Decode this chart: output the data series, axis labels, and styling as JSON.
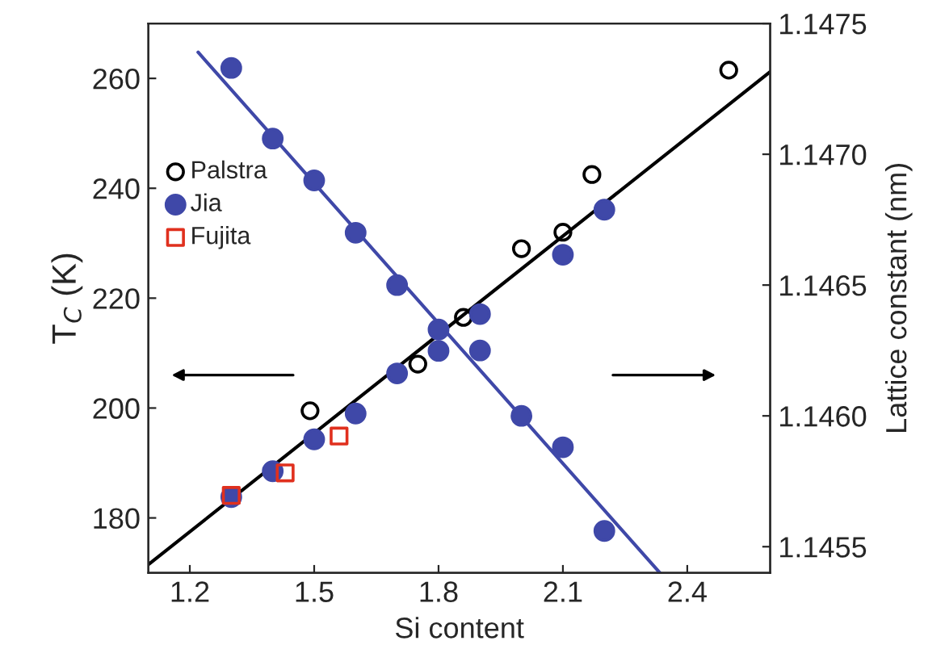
{
  "chart_data": {
    "type": "scatter",
    "xlabel": "Si content",
    "ylabel": "T$_{C}$ (K)",
    "y2label": "Lattice constant (nm)",
    "xlim": [
      1.1,
      2.6
    ],
    "xticks": [
      1.2,
      1.5,
      1.8,
      2.1,
      2.4
    ],
    "ylim": [
      170,
      270
    ],
    "yticks": [
      180,
      200,
      220,
      240,
      260
    ],
    "y2lim": [
      1.1454,
      1.1475
    ],
    "y2ticks": [
      1.1455,
      {
        "value": 1.146,
        "label": "1.1460"
      },
      1.1465,
      {
        "value": 1.147,
        "label": "1.1470"
      },
      1.1475
    ],
    "grid": false,
    "legend": "left",
    "series": [
      {
        "type": "line",
        "color": "#000000",
        "x": [
          1.1,
          2.6
        ],
        "values": [
          171.5,
          261.2
        ],
        "marker": "none",
        "line_style": "solid"
      },
      {
        "type": "line",
        "color": "#3f48a8",
        "axis": "y2",
        "x": [
          1.22,
          2.334
        ],
        "values": [
          1.14739,
          1.1454
        ],
        "marker": "none",
        "line_style": "solid"
      },
      {
        "name": "Palstra",
        "color": "#000000",
        "marker": "circle",
        "x": [
          1.49,
          1.75,
          1.86,
          2.0,
          2.1,
          2.17,
          2.5
        ],
        "values": [
          199.5,
          208,
          216.5,
          229,
          232,
          242.5,
          261.5
        ]
      },
      {
        "name": "Jia",
        "color": "#3f48a8",
        "marker": "circle",
        "x": [
          1.3,
          1.4,
          1.5,
          1.6,
          1.7,
          1.8,
          1.9,
          2.1,
          2.2
        ],
        "values": [
          183.8,
          188.5,
          194.3,
          199,
          206.3,
          210.4,
          217.1,
          227.9,
          236.1
        ]
      },
      {
        "name": "Fujita",
        "color": "#e0301e",
        "marker": "square",
        "x": [
          1.3,
          1.43,
          1.56
        ],
        "values": [
          184.1,
          188.2,
          194.9
        ]
      },
      {
        "color": "#3f48a8",
        "marker": "circle",
        "axis": "y2",
        "x": [
          1.3,
          1.4,
          1.5,
          1.6,
          1.7,
          1.8,
          1.9,
          2.0,
          2.1,
          2.2
        ],
        "values": [
          1.14733,
          1.14706,
          1.1469,
          1.1467,
          1.1465,
          1.14633,
          1.14625,
          1.146,
          1.14588,
          1.14556
        ]
      }
    ]
  }
}
